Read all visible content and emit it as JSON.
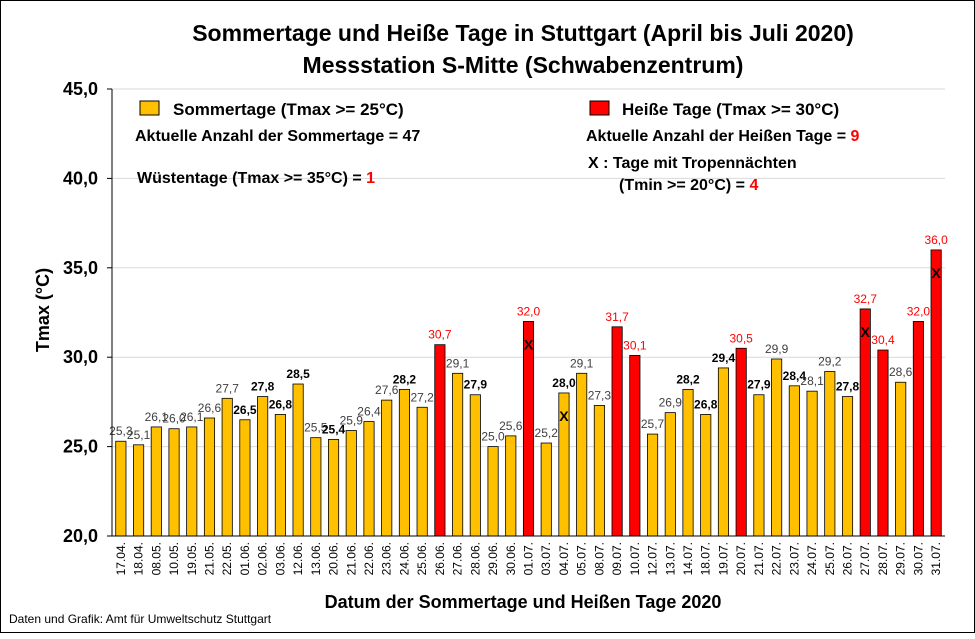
{
  "chart_data": {
    "type": "bar",
    "title": "Sommertage und Heiße Tage in Stuttgart (April bis Juli 2020)",
    "subtitle": "Messstation S-Mitte (Schwabenzentrum)",
    "xlabel": "Datum der Sommertage und Heißen Tage 2020",
    "ylabel": "Tmax (°C)",
    "ylim": [
      20,
      45
    ],
    "yticks": [
      "20,0",
      "25,0",
      "30,0",
      "35,0",
      "40,0",
      "45,0"
    ],
    "grid": true,
    "categories": [
      "17.04.",
      "18.04.",
      "08.05.",
      "10.05.",
      "19.05.",
      "21.05.",
      "22.05.",
      "01.06.",
      "02.06.",
      "03.06.",
      "12.06.",
      "13.06.",
      "20.06.",
      "21.06.",
      "22.06.",
      "23.06.",
      "24.06.",
      "25.06.",
      "26.06.",
      "27.06.",
      "28.06.",
      "29.06.",
      "30.06.",
      "01.07.",
      "03.07.",
      "04.07.",
      "05.07.",
      "08.07.",
      "09.07.",
      "10.07.",
      "12.07.",
      "13.07.",
      "14.07.",
      "18.07.",
      "19.07.",
      "20.07.",
      "21.07.",
      "22.07.",
      "23.07.",
      "24.07.",
      "25.07.",
      "26.07.",
      "27.07.",
      "28.07.",
      "29.07.",
      "30.07.",
      "31.07."
    ],
    "values": [
      25.3,
      25.1,
      26.1,
      26.0,
      26.1,
      26.6,
      27.7,
      26.5,
      27.8,
      26.8,
      28.5,
      25.5,
      25.4,
      25.9,
      26.4,
      27.6,
      28.2,
      27.2,
      30.7,
      29.1,
      27.9,
      25.0,
      25.6,
      32.0,
      25.2,
      28.0,
      29.1,
      27.3,
      31.7,
      30.1,
      25.7,
      26.9,
      28.2,
      26.8,
      29.4,
      30.5,
      27.9,
      29.9,
      28.4,
      28.1,
      29.2,
      27.8,
      32.7,
      30.4,
      28.6,
      32.0,
      36.0
    ],
    "value_labels": [
      "25,3",
      "25,1",
      "26,1",
      "26,0",
      "26,1",
      "26,6",
      "27,7",
      "26,5",
      "27,8",
      "26,8",
      "28,5",
      "25,5",
      "25,4",
      "25,9",
      "26,4",
      "27,6",
      "28,2",
      "27,2",
      "30,7",
      "29,1",
      "27,9",
      "25,0",
      "25,6",
      "32,0",
      "25,2",
      "28,0",
      "29,1",
      "27,3",
      "31,7",
      "30,1",
      "25,7",
      "26,9",
      "28,2",
      "26,8",
      "29,4",
      "30,5",
      "27,9",
      "29,9",
      "28,4",
      "28,1",
      "29,2",
      "27,8",
      "32,7",
      "30,4",
      "28,6",
      "32,0",
      "36,0"
    ],
    "tropical_night_marker": "X",
    "tropical_night_days": [
      "01.07.",
      "04.07.",
      "27.07.",
      "31.07."
    ],
    "legend": [
      {
        "name": "Sommertage (Tmax >= 25°C)",
        "color": "#FFC000"
      },
      {
        "name": "Heiße Tage (Tmax >= 30°C)",
        "color": "#FF0000"
      }
    ],
    "annotations": {
      "sommertage_text": "Aktuelle Anzahl der Sommertage = ",
      "sommertage_count": "47",
      "heisse_text": "Aktuelle Anzahl der Heißen Tage = ",
      "heisse_count": "9",
      "wuestentage_text": "Wüstentage (Tmax >= 35°C) = ",
      "wuestentage_count": "1",
      "tropen_line1": "X :  Tage mit Tropennächten",
      "tropen_line2_text": "(Tmin >= 20°C) = ",
      "tropen_count": "4"
    }
  },
  "footer": {
    "source": "Daten und Grafik: Amt für Umweltschutz Stuttgart"
  },
  "colors": {
    "sommertag": "#FFC000",
    "heisser_tag": "#FF0000",
    "value_label_dark": "#000000",
    "value_label_red": "#FF0000",
    "value_label_gray": "#404040",
    "count_red": "#FF0000",
    "grid": "#D9D9D9"
  }
}
